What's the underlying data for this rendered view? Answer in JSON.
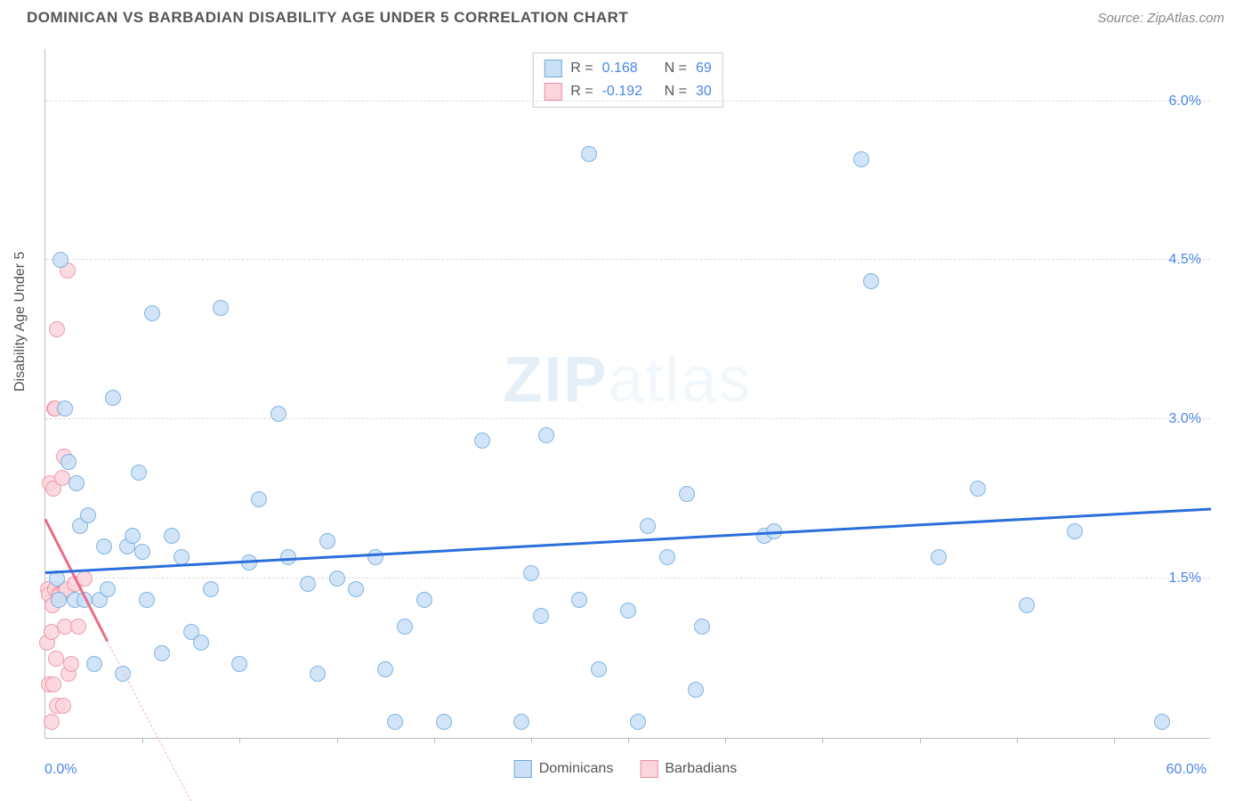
{
  "header": {
    "title": "DOMINICAN VS BARBADIAN DISABILITY AGE UNDER 5 CORRELATION CHART",
    "source": "Source: ZipAtlas.com"
  },
  "watermark": {
    "bold": "ZIP",
    "light": "atlas"
  },
  "chart": {
    "type": "scatter",
    "ylabel": "Disability Age Under 5",
    "xlim": [
      0,
      60
    ],
    "ylim": [
      0,
      6.5
    ],
    "xlabel_min": "0.0%",
    "xlabel_max": "60.0%",
    "yticks": [
      {
        "v": 1.5,
        "label": "1.5%"
      },
      {
        "v": 3.0,
        "label": "3.0%"
      },
      {
        "v": 4.5,
        "label": "4.5%"
      },
      {
        "v": 6.0,
        "label": "6.0%"
      }
    ],
    "xtick_positions": [
      5,
      10,
      15,
      20,
      25,
      30,
      35,
      40,
      45,
      50,
      55
    ],
    "grid_color": "#dddddd",
    "background_color": "#ffffff",
    "axis_color": "#bbbbbb",
    "tick_label_color": "#4a86e8",
    "point_radius": 9,
    "point_border_width": 1.5,
    "series": {
      "dominicans": {
        "label": "Dominicans",
        "fill": "#c9e0f7",
        "stroke": "#6fa8dc",
        "R": "0.168",
        "N": "69",
        "trend": {
          "x1": 0,
          "y1": 1.55,
          "x2": 60,
          "y2": 2.15,
          "color": "#2a6fdb",
          "width": 2.5
        },
        "points": [
          [
            0.6,
            1.5
          ],
          [
            0.7,
            1.3
          ],
          [
            0.8,
            4.5
          ],
          [
            1.0,
            3.1
          ],
          [
            1.2,
            2.6
          ],
          [
            1.5,
            1.3
          ],
          [
            1.6,
            2.4
          ],
          [
            1.8,
            2.0
          ],
          [
            2.0,
            1.3
          ],
          [
            2.2,
            2.1
          ],
          [
            2.5,
            0.7
          ],
          [
            2.8,
            1.3
          ],
          [
            3.0,
            1.8
          ],
          [
            3.2,
            1.4
          ],
          [
            3.5,
            3.2
          ],
          [
            4.0,
            0.6
          ],
          [
            4.2,
            1.8
          ],
          [
            4.5,
            1.9
          ],
          [
            4.8,
            2.5
          ],
          [
            5.0,
            1.75
          ],
          [
            5.2,
            1.3
          ],
          [
            5.5,
            4.0
          ],
          [
            6.0,
            0.8
          ],
          [
            6.5,
            1.9
          ],
          [
            7.0,
            1.7
          ],
          [
            7.5,
            1.0
          ],
          [
            8.0,
            0.9
          ],
          [
            8.5,
            1.4
          ],
          [
            9.0,
            4.05
          ],
          [
            10.0,
            0.7
          ],
          [
            10.5,
            1.65
          ],
          [
            11.0,
            2.25
          ],
          [
            12.0,
            3.05
          ],
          [
            12.5,
            1.7
          ],
          [
            13.5,
            1.45
          ],
          [
            14.0,
            0.6
          ],
          [
            14.5,
            1.85
          ],
          [
            15.0,
            1.5
          ],
          [
            16.0,
            1.4
          ],
          [
            17.0,
            1.7
          ],
          [
            17.5,
            0.65
          ],
          [
            18.0,
            0.15
          ],
          [
            18.5,
            1.05
          ],
          [
            19.5,
            1.3
          ],
          [
            20.5,
            0.15
          ],
          [
            22.5,
            2.8
          ],
          [
            24.5,
            0.15
          ],
          [
            25.0,
            1.55
          ],
          [
            25.5,
            1.15
          ],
          [
            25.8,
            2.85
          ],
          [
            27.5,
            1.3
          ],
          [
            28.0,
            5.5
          ],
          [
            28.5,
            0.65
          ],
          [
            30.0,
            1.2
          ],
          [
            30.5,
            0.15
          ],
          [
            31.0,
            2.0
          ],
          [
            32.0,
            1.7
          ],
          [
            33.0,
            2.3
          ],
          [
            33.5,
            0.45
          ],
          [
            33.8,
            1.05
          ],
          [
            37.0,
            1.9
          ],
          [
            37.5,
            1.95
          ],
          [
            42.0,
            5.45
          ],
          [
            42.5,
            4.3
          ],
          [
            46.0,
            1.7
          ],
          [
            48.0,
            2.35
          ],
          [
            50.5,
            1.25
          ],
          [
            53.0,
            1.95
          ],
          [
            57.5,
            0.15
          ]
        ]
      },
      "barbadians": {
        "label": "Barbadians",
        "fill": "#fbd5dc",
        "stroke": "#e98ea0",
        "R": "-0.192",
        "N": "30",
        "trend_solid": {
          "x1": 0,
          "y1": 2.05,
          "x2": 3.2,
          "y2": 0.9,
          "color": "#e86e87",
          "width": 2.5
        },
        "trend_dash": {
          "x1": 3.2,
          "y1": 0.9,
          "x2": 7.5,
          "y2": -0.6,
          "color": "#f3b7c2",
          "width": 1
        },
        "points": [
          [
            0.1,
            0.9
          ],
          [
            0.15,
            1.4
          ],
          [
            0.2,
            1.35
          ],
          [
            0.2,
            0.5
          ],
          [
            0.25,
            2.4
          ],
          [
            0.3,
            0.15
          ],
          [
            0.3,
            1.0
          ],
          [
            0.35,
            1.25
          ],
          [
            0.4,
            2.35
          ],
          [
            0.4,
            0.5
          ],
          [
            0.45,
            3.1
          ],
          [
            0.5,
            3.1
          ],
          [
            0.5,
            1.4
          ],
          [
            0.55,
            0.75
          ],
          [
            0.6,
            3.85
          ],
          [
            0.6,
            0.3
          ],
          [
            0.7,
            1.35
          ],
          [
            0.8,
            1.35
          ],
          [
            0.85,
            2.45
          ],
          [
            0.9,
            0.3
          ],
          [
            0.95,
            2.65
          ],
          [
            1.0,
            1.05
          ],
          [
            1.0,
            1.38
          ],
          [
            1.1,
            1.4
          ],
          [
            1.15,
            4.4
          ],
          [
            1.2,
            0.6
          ],
          [
            1.35,
            0.7
          ],
          [
            1.5,
            1.45
          ],
          [
            1.7,
            1.05
          ],
          [
            2.0,
            1.5
          ]
        ]
      }
    }
  },
  "stats_box": {
    "rows": [
      {
        "swatch_fill": "#c9e0f7",
        "swatch_stroke": "#6fa8dc",
        "r_label": "R =",
        "r_val": "0.168",
        "n_label": "N =",
        "n_val": "69",
        "val_color": "#4a86e8"
      },
      {
        "swatch_fill": "#fbd5dc",
        "swatch_stroke": "#e98ea0",
        "r_label": "R =",
        "r_val": "-0.192",
        "n_label": "N =",
        "n_val": "30",
        "val_color": "#4a86e8"
      }
    ]
  },
  "legend": {
    "items": [
      {
        "label": "Dominicans",
        "fill": "#c9e0f7",
        "stroke": "#6fa8dc"
      },
      {
        "label": "Barbadians",
        "fill": "#fbd5dc",
        "stroke": "#e98ea0"
      }
    ]
  }
}
